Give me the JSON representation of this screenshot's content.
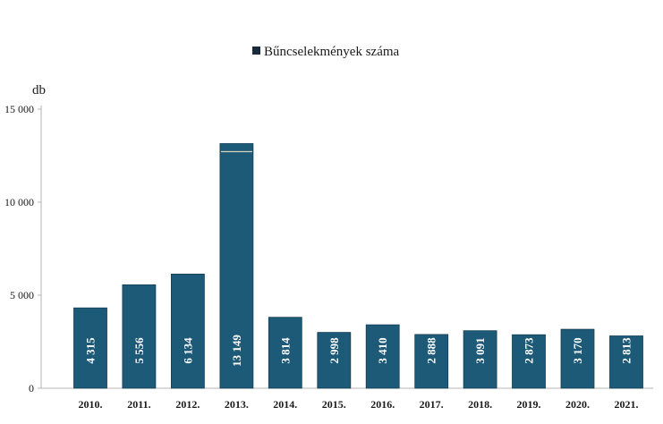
{
  "chart_data": {
    "type": "bar",
    "legend": "Bűncselekmények száma",
    "legend_position": "top-center",
    "ylabel": "db",
    "xlabel": "",
    "title": "",
    "categories": [
      "2010.",
      "2011.",
      "2012.",
      "2013.",
      "2014.",
      "2015.",
      "2016.",
      "2017.",
      "2018.",
      "2019.",
      "2020.",
      "2021."
    ],
    "values": [
      4315,
      5556,
      6134,
      13149,
      3814,
      2998,
      3410,
      2888,
      3091,
      2873,
      3170,
      2813
    ],
    "value_labels": [
      "4 315",
      "5 556",
      "6 134",
      "13 149",
      "3 814",
      "2 998",
      "3 410",
      "2 888",
      "3 091",
      "2 873",
      "3 170",
      "2 813"
    ],
    "ylim": [
      0,
      15000
    ],
    "yticks": [
      0,
      5000,
      10000,
      15000
    ],
    "ytick_labels": [
      "0",
      "5 000",
      "10 000",
      "15 000"
    ],
    "grid": false,
    "colors": {
      "bar": "#1d5a78",
      "bar_edge": "#143f56",
      "legend_marker": "#1a2a3a",
      "axis": "#b5b5b5"
    }
  }
}
